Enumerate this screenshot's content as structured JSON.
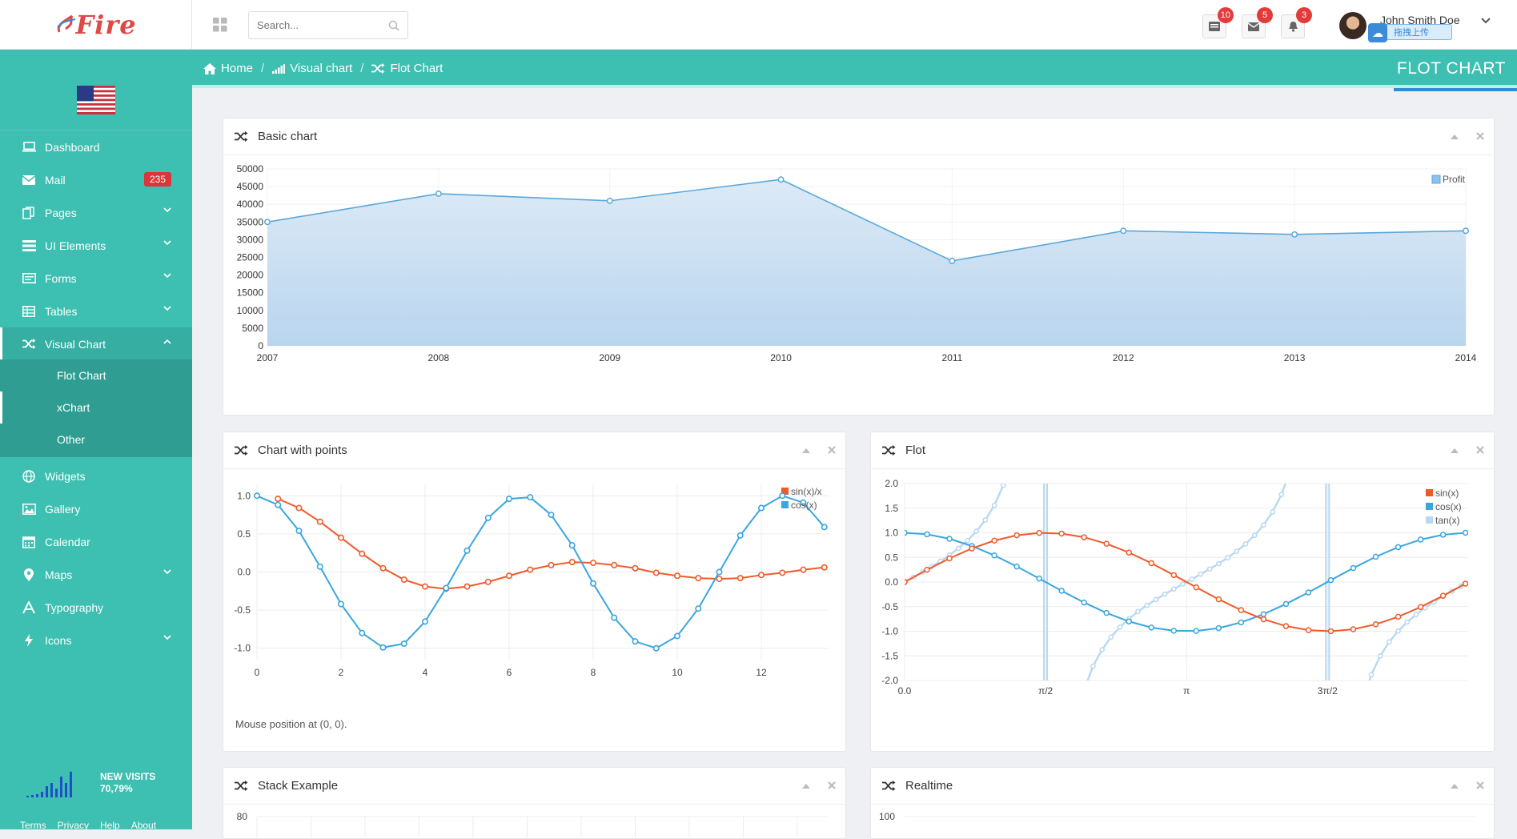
{
  "header": {
    "logo_text": "Fire",
    "search_placeholder": "Search...",
    "notifications": [
      {
        "icon": "tasks-icon",
        "count": "10"
      },
      {
        "icon": "mail-icon",
        "count": "5"
      },
      {
        "icon": "bell-icon",
        "count": "3"
      }
    ],
    "user_name": "John Smith Doe",
    "upload_label": "拖拽上传"
  },
  "sidebar": {
    "items": [
      {
        "label": "Dashboard",
        "icon": "laptop-icon"
      },
      {
        "label": "Mail",
        "icon": "envelope-icon",
        "badge": "235"
      },
      {
        "label": "Pages",
        "icon": "files-icon"
      },
      {
        "label": "UI Elements",
        "icon": "list-icon"
      },
      {
        "label": "Forms",
        "icon": "form-icon"
      },
      {
        "label": "Tables",
        "icon": "table-icon"
      },
      {
        "label": "Visual Chart",
        "icon": "shuffle-icon"
      },
      {
        "label": "Widgets",
        "icon": "globe-icon"
      },
      {
        "label": "Gallery",
        "icon": "image-icon"
      },
      {
        "label": "Calendar",
        "icon": "calendar-icon"
      },
      {
        "label": "Maps",
        "icon": "map-marker-icon"
      },
      {
        "label": "Typography",
        "icon": "font-icon"
      },
      {
        "label": "Icons",
        "icon": "bolt-icon"
      }
    ],
    "submenu": [
      "Flot Chart",
      "xChart",
      "Other"
    ],
    "visits_label": "NEW VISITS",
    "visits_value": "70,79%",
    "footer_links": [
      "Terms",
      "Privacy",
      "Help",
      "About"
    ]
  },
  "breadcrumb": {
    "items": [
      "Home",
      "Visual chart",
      "Flot Chart"
    ],
    "page_title": "FLOT CHART"
  },
  "panels": {
    "basic": "Basic chart",
    "points": "Chart with points",
    "flot": "Flot",
    "stack": "Stack Example",
    "realtime": "Realtime"
  },
  "mouse_position": "Mouse position at (0, 0).",
  "colors": {
    "accent": "#3dbfb1",
    "submenu": "#2f9d92",
    "badge": "#e33b3b",
    "blue_series": "#39a6dd",
    "orange_series": "#f05a2a"
  },
  "chart_data": [
    {
      "type": "area",
      "title": "Basic chart",
      "x": [
        2007,
        2008,
        2009,
        2010,
        2011,
        2012,
        2013,
        2014
      ],
      "series": [
        {
          "name": "Profit",
          "values": [
            35000,
            43000,
            41000,
            47000,
            24000,
            32500,
            31500,
            32500
          ]
        }
      ],
      "ylim": [
        0,
        50000
      ],
      "yticks": [
        0,
        5000,
        10000,
        15000,
        20000,
        25000,
        30000,
        35000,
        40000,
        45000,
        50000
      ],
      "legend": "top-right"
    },
    {
      "type": "line",
      "title": "Chart with points",
      "series": [
        {
          "name": "sin(x)/x",
          "x": [
            0.5,
            1,
            1.5,
            2,
            2.5,
            3,
            3.5,
            4,
            4.5,
            5,
            5.5,
            6,
            6.5,
            7,
            7.5,
            8,
            8.5,
            9,
            9.5,
            10,
            10.5,
            11,
            11.5,
            12,
            12.5,
            13,
            13.5
          ],
          "values": [
            0.96,
            0.84,
            0.66,
            0.45,
            0.24,
            0.05,
            -0.1,
            -0.19,
            -0.22,
            -0.19,
            -0.13,
            -0.05,
            0.03,
            0.09,
            0.13,
            0.12,
            0.09,
            0.05,
            -0.01,
            -0.05,
            -0.08,
            -0.09,
            -0.08,
            -0.04,
            -0.01,
            0.03,
            0.06
          ]
        },
        {
          "name": "cos(x)",
          "x": [
            0,
            0.5,
            1,
            1.5,
            2,
            2.5,
            3,
            3.5,
            4,
            4.5,
            5,
            5.5,
            6,
            6.5,
            7,
            7.5,
            8,
            8.5,
            9,
            9.5,
            10,
            10.5,
            11,
            11.5,
            12,
            12.5,
            13,
            13.5
          ],
          "values": [
            1,
            0.88,
            0.54,
            0.07,
            -0.42,
            -0.8,
            -0.99,
            -0.94,
            -0.65,
            -0.21,
            0.28,
            0.71,
            0.96,
            0.98,
            0.75,
            0.35,
            -0.15,
            -0.6,
            -0.91,
            -1.0,
            -0.84,
            -0.48,
            0.0,
            0.48,
            0.84,
            1.0,
            0.91,
            0.59
          ]
        }
      ],
      "xlim": [
        0,
        13.6
      ],
      "ylim": [
        -1.15,
        1.15
      ],
      "xticks": [
        0,
        2,
        4,
        6,
        8,
        10,
        12
      ],
      "yticks": [
        -1.0,
        -0.5,
        0.0,
        0.5,
        1.0
      ],
      "legend": "top-right"
    },
    {
      "type": "line",
      "title": "Flot",
      "xlim": [
        0,
        6.28
      ],
      "ylim": [
        -2,
        2
      ],
      "xticks": [
        {
          "v": 0,
          "label": "0.0"
        },
        {
          "v": 1.5708,
          "label": "π/2"
        },
        {
          "v": 3.1416,
          "label": "π"
        },
        {
          "v": 4.7124,
          "label": "3π/2"
        }
      ],
      "yticks": [
        -2.0,
        -1.5,
        -1.0,
        -0.5,
        0.0,
        0.5,
        1.0,
        1.5,
        2.0
      ],
      "series": [
        {
          "name": "sin(x)"
        },
        {
          "name": "cos(x)"
        },
        {
          "name": "tan(x)"
        }
      ],
      "legend": "top-right"
    },
    {
      "type": "bar",
      "title": "Stack Example",
      "yticks": [
        80
      ]
    },
    {
      "type": "line",
      "title": "Realtime",
      "yticks": [
        100
      ]
    }
  ]
}
